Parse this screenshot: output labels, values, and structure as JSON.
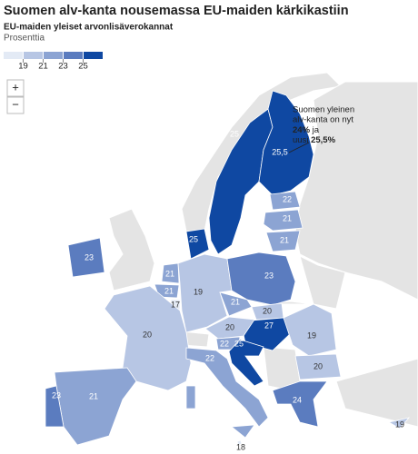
{
  "header": {
    "title": "Suomen alv-kanta nousemassa EU-maiden kärkikastiin",
    "subtitle": "EU-maiden yleiset arvonlisäverokannat",
    "unit": "Prosenttia"
  },
  "legend": {
    "ticks": [
      19,
      21,
      23,
      25
    ],
    "colors": [
      "#e3eaf5",
      "#b7c6e4",
      "#8ca4d3",
      "#5b7cbf",
      "#0f48a2"
    ]
  },
  "zoom": {
    "in": "+",
    "out": "−"
  },
  "annotation": {
    "lines": [
      "Suomen yleinen",
      "alv-kanta on nyt"
    ],
    "old": "24%",
    "join": "ja",
    "new_prefix": "uusi",
    "new": "25,5%"
  },
  "map": {
    "values": [
      25,
      {
        "value": 25.5,
        "label": "25,5"
      },
      22,
      21,
      21,
      25,
      23,
      21,
      21,
      17,
      19,
      23,
      21,
      20,
      27,
      20,
      22,
      25,
      20,
      22,
      21,
      23,
      19,
      20,
      24,
      19,
      18
    ]
  }
}
